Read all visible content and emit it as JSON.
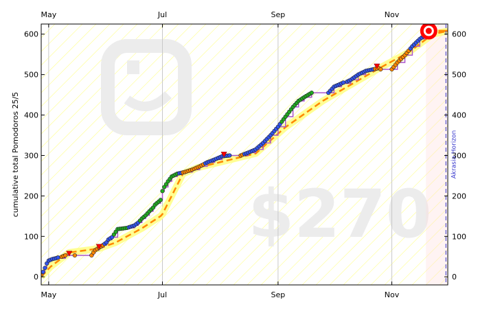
{
  "chart_data": {
    "type": "line",
    "ylabel": "cumulative total Pomodoros 25/5",
    "ylim": [
      -20,
      625
    ],
    "yticks": [
      0,
      100,
      200,
      300,
      400,
      500,
      600
    ],
    "xlim": [
      "2023-04-27",
      "2023-12-01"
    ],
    "xticks": [
      {
        "date": "2023-05-01",
        "label": "May"
      },
      {
        "date": "2023-07-01",
        "label": "Jul"
      },
      {
        "date": "2023-09-01",
        "label": "Sep"
      },
      {
        "date": "2023-11-01",
        "label": "Nov"
      }
    ],
    "grid": "vertical at month ticks",
    "watermark_text": "$270",
    "horizon": {
      "date": "2023-11-30",
      "label": "Akrasia Horizon"
    },
    "today": "2023-11-23",
    "goal_value": 608,
    "colors": {
      "data_line": "#aa55cc",
      "road_bright": "#ff8800",
      "road_dull": "#ffff88",
      "stripe": "#ffff66",
      "horizon": "#3333cc",
      "dot_green": "#22aa22",
      "dot_blue": "#3355ee",
      "dot_orange": "#ff8800",
      "derail": "#ff0000",
      "bullseye": "#ff0000"
    },
    "series": [
      {
        "points": [
          [
            "2023-04-27",
            5
          ],
          [
            "2023-04-28",
            12
          ],
          [
            "2023-04-29",
            22
          ],
          [
            "2023-04-30",
            33
          ],
          [
            "2023-05-01",
            40
          ],
          [
            "2023-05-03",
            44
          ],
          [
            "2023-05-05",
            46
          ],
          [
            "2023-05-10",
            53
          ],
          [
            "2023-05-15",
            53
          ],
          [
            "2023-05-24",
            53
          ],
          [
            "2023-05-25",
            60
          ],
          [
            "2023-05-26",
            66
          ],
          [
            "2023-05-28",
            72
          ],
          [
            "2023-05-30",
            78
          ],
          [
            "2023-06-01",
            85
          ],
          [
            "2023-06-02",
            92
          ],
          [
            "2023-06-04",
            98
          ],
          [
            "2023-06-07",
            118
          ],
          [
            "2023-06-09",
            119
          ],
          [
            "2023-06-12",
            121
          ],
          [
            "2023-06-16",
            127
          ],
          [
            "2023-06-18",
            134
          ],
          [
            "2023-06-20",
            144
          ],
          [
            "2023-06-22",
            152
          ],
          [
            "2023-06-24",
            162
          ],
          [
            "2023-06-26",
            171
          ],
          [
            "2023-06-27",
            178
          ],
          [
            "2023-06-28",
            182
          ],
          [
            "2023-06-30",
            190
          ],
          [
            "2023-07-01",
            212
          ],
          [
            "2023-07-02",
            222
          ],
          [
            "2023-07-04",
            236
          ],
          [
            "2023-07-06",
            248
          ],
          [
            "2023-07-09",
            255
          ],
          [
            "2023-07-13",
            259
          ],
          [
            "2023-07-17",
            265
          ],
          [
            "2023-07-21",
            273
          ],
          [
            "2023-07-25",
            283
          ],
          [
            "2023-07-29",
            290
          ],
          [
            "2023-08-02",
            298
          ],
          [
            "2023-08-06",
            300
          ],
          [
            "2023-08-12",
            300
          ],
          [
            "2023-08-16",
            307
          ],
          [
            "2023-08-20",
            315
          ],
          [
            "2023-08-24",
            331
          ],
          [
            "2023-08-28",
            350
          ],
          [
            "2023-09-01",
            371
          ],
          [
            "2023-09-05",
            396
          ],
          [
            "2023-09-09",
            420
          ],
          [
            "2023-09-12",
            435
          ],
          [
            "2023-09-15",
            444
          ],
          [
            "2023-09-19",
            455
          ],
          [
            "2023-09-28",
            455
          ],
          [
            "2023-10-01",
            470
          ],
          [
            "2023-10-05",
            478
          ],
          [
            "2023-10-10",
            487
          ],
          [
            "2023-10-14",
            500
          ],
          [
            "2023-10-18",
            509
          ],
          [
            "2023-10-22",
            513
          ],
          [
            "2023-10-25",
            516
          ],
          [
            "2023-10-26",
            513
          ],
          [
            "2023-11-01",
            513
          ],
          [
            "2023-11-04",
            530
          ],
          [
            "2023-11-08",
            548
          ],
          [
            "2023-11-12",
            570
          ],
          [
            "2023-11-16",
            588
          ],
          [
            "2023-11-19",
            598
          ],
          [
            "2023-11-22",
            605
          ]
        ]
      }
    ],
    "road": [
      [
        "2023-04-27",
        0
      ],
      [
        "2023-05-02",
        25
      ],
      [
        "2023-05-12",
        60
      ],
      [
        "2023-05-28",
        70
      ],
      [
        "2023-06-06",
        85
      ],
      [
        "2023-06-20",
        120
      ],
      [
        "2023-06-30",
        150
      ],
      [
        "2023-07-01",
        155
      ],
      [
        "2023-07-12",
        255
      ],
      [
        "2023-07-20",
        270
      ],
      [
        "2023-08-20",
        305
      ],
      [
        "2023-09-05",
        370
      ],
      [
        "2023-09-25",
        435
      ],
      [
        "2023-10-10",
        475
      ],
      [
        "2023-10-25",
        515
      ],
      [
        "2023-11-10",
        555
      ],
      [
        "2023-11-23",
        600
      ],
      [
        "2023-12-01",
        608
      ]
    ]
  }
}
